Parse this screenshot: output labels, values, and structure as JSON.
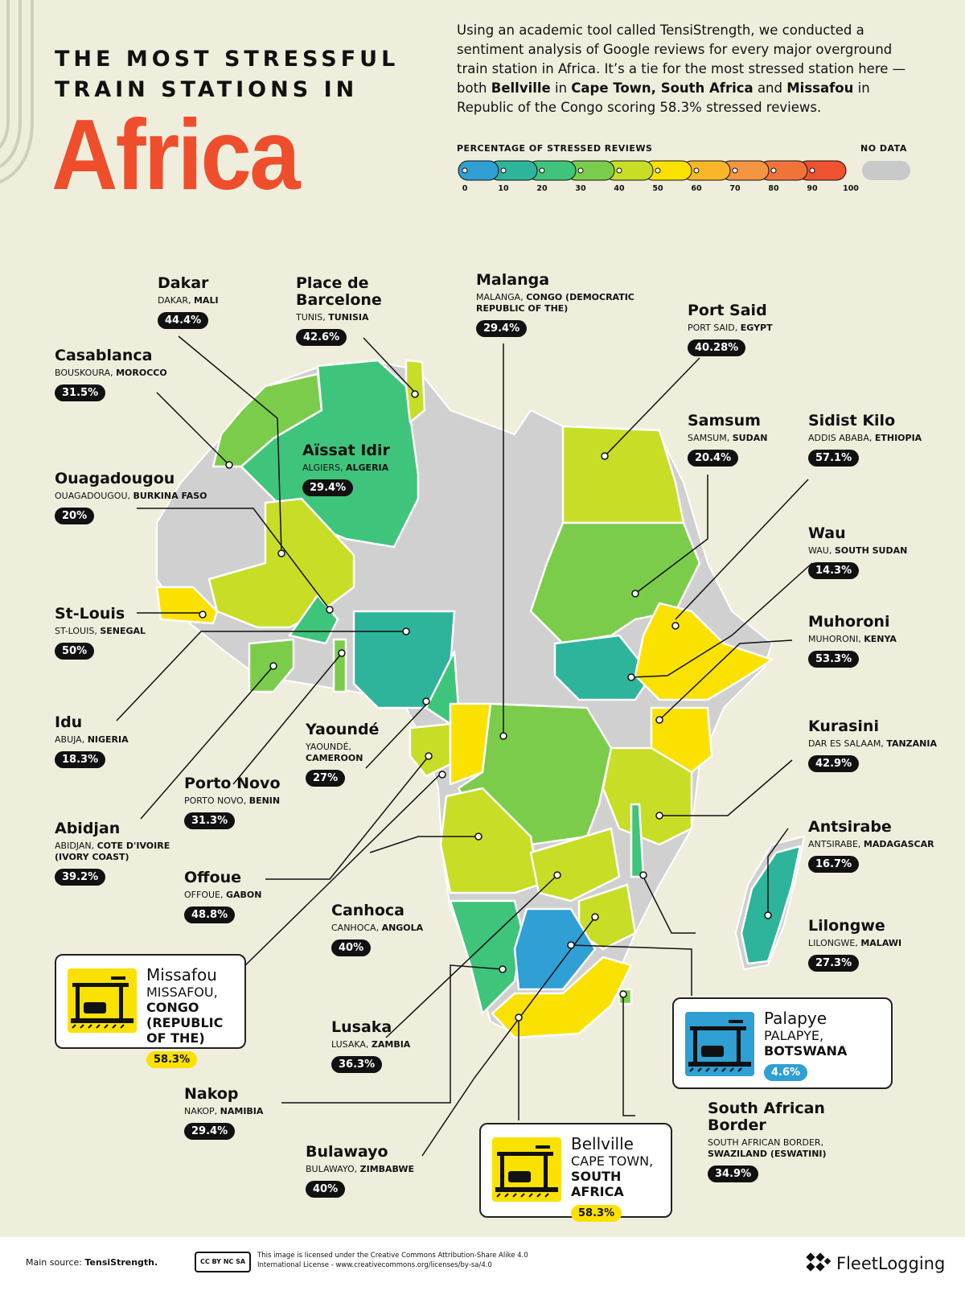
{
  "header": {
    "title_line1": "THE MOST STRESSFUL",
    "title_line2": "TRAIN STATIONS IN",
    "title_big": "Africa"
  },
  "intro": {
    "p1": "Using an academic tool called TensiStrength, we conducted a sentiment analysis of Google reviews for every major overground train station in Africa. It’s a tie for the most stressed station here — both ",
    "b1": "Bellville",
    "p2": " in ",
    "b2": "Cape Town, South Africa",
    "p3": " and ",
    "b3": "Missafou",
    "p4": " in Republic of the Congo scoring 58.3% stressed reviews."
  },
  "legend": {
    "title": "PERCENTAGE OF STRESSED REVIEWS",
    "nodata": "NO DATA",
    "nodata_color": "#c8c9c9",
    "ticks": [
      "0",
      "10",
      "20",
      "30",
      "40",
      "50",
      "60",
      "70",
      "80",
      "90",
      "100"
    ],
    "colors": [
      "#2f9fd4",
      "#2db49b",
      "#3fc47b",
      "#7ccc4c",
      "#c8dd26",
      "#fbe100",
      "#f8b628",
      "#f49542",
      "#f27339",
      "#ee5230"
    ]
  },
  "stations": [
    {
      "id": "dakar",
      "name": "Dakar",
      "city": "DAKAR, ",
      "country": "MALI",
      "value": "44.4%"
    },
    {
      "id": "barcelone",
      "name": "Place de Barcelone",
      "city": "TUNIS, ",
      "country": "TUNISIA",
      "value": "42.6%"
    },
    {
      "id": "malanga",
      "name": "Malanga",
      "city": "MALANGA, ",
      "country": "CONGO (DEMOCRATIC REPUBLIC OF THE)",
      "value": "29.4%"
    },
    {
      "id": "portsaid",
      "name": "Port Said",
      "city": "PORT SAID, ",
      "country": "EGYPT",
      "value": "40.28%"
    },
    {
      "id": "casablanca",
      "name": "Casablanca",
      "city": "BOUSKOURA, ",
      "country": "MOROCCO",
      "value": "31.5%"
    },
    {
      "id": "aissat",
      "name": "Aïssat Idir",
      "city": "ALGIERS, ",
      "country": "ALGERIA",
      "value": "29.4%"
    },
    {
      "id": "samsum",
      "name": "Samsum",
      "city": "SAMSUM, ",
      "country": "SUDAN",
      "value": "20.4%"
    },
    {
      "id": "sidist",
      "name": "Sidist Kilo",
      "city": "ADDIS ABABA, ",
      "country": "ETHIOPIA",
      "value": "57.1%"
    },
    {
      "id": "ouaga",
      "name": "Ouagadougou",
      "city": "OUAGADOUGOU, ",
      "country": "BURKINA FASO",
      "value": "20%"
    },
    {
      "id": "wau",
      "name": "Wau",
      "city": "WAU, ",
      "country": "SOUTH SUDAN",
      "value": "14.3%"
    },
    {
      "id": "stlouis",
      "name": "St-Louis",
      "city": "ST-LOUIS, ",
      "country": "SENEGAL",
      "value": "50%"
    },
    {
      "id": "muhoroni",
      "name": "Muhoroni",
      "city": "MUHORONI, ",
      "country": "KENYA",
      "value": "53.3%"
    },
    {
      "id": "idu",
      "name": "Idu",
      "city": "ABUJA, ",
      "country": "NIGERIA",
      "value": "18.3%"
    },
    {
      "id": "yaounde",
      "name": "Yaoundé",
      "city": "YAOUNDÉ, ",
      "country": "CAMEROON",
      "value": "27%"
    },
    {
      "id": "kurasini",
      "name": "Kurasini",
      "city": "DAR ES SALAAM, ",
      "country": "TANZANIA",
      "value": "42.9%"
    },
    {
      "id": "portonovo",
      "name": "Porto Novo",
      "city": "PORTO NOVO, ",
      "country": "BENIN",
      "value": "31.3%"
    },
    {
      "id": "abidjan",
      "name": "Abidjan",
      "city": "ABIDJAN, ",
      "country": "COTE D'IVOIRE (IVORY COAST)",
      "value": "39.2%"
    },
    {
      "id": "antsirabe",
      "name": "Antsirabe",
      "city": "ANTSIRABE, ",
      "country": "MADAGASCAR",
      "value": "16.7%"
    },
    {
      "id": "offoue",
      "name": "Offoue",
      "city": "OFFOUE, ",
      "country": "GABON",
      "value": "48.8%"
    },
    {
      "id": "canhoca",
      "name": "Canhoca",
      "city": "CANHOCA, ",
      "country": "ANGOLA",
      "value": "40%"
    },
    {
      "id": "lilongwe",
      "name": "Lilongwe",
      "city": "LILONGWE, ",
      "country": "MALAWI",
      "value": "27.3%"
    },
    {
      "id": "missafou",
      "name": "Missafou",
      "city": "MISSAFOU, ",
      "country": "CONGO (REPUBLIC OF THE)",
      "value": "58.3%"
    },
    {
      "id": "lusaka",
      "name": "Lusaka",
      "city": "LUSAKA, ",
      "country": "ZAMBIA",
      "value": "36.3%"
    },
    {
      "id": "palapye",
      "name": "Palapye",
      "city": "PALAPYE, ",
      "country": "BOTSWANA",
      "value": "4.6%"
    },
    {
      "id": "nakop",
      "name": "Nakop",
      "city": "NAKOP, ",
      "country": "NAMIBIA",
      "value": "29.4%"
    },
    {
      "id": "saborder",
      "name": "South African Border",
      "city": "SOUTH AFRICAN BORDER, ",
      "country": "SWAZILAND (ESWATINI)",
      "value": "34.9%"
    },
    {
      "id": "bulawayo",
      "name": "Bulawayo",
      "city": "BULAWAYO, ",
      "country": "ZIMBABWE",
      "value": "40%"
    },
    {
      "id": "bellville",
      "name": "Bellville",
      "city": "CAPE TOWN, ",
      "country": "SOUTH AFRICA",
      "value": "58.3%"
    }
  ],
  "footer": {
    "source_label": "Main source: ",
    "source_value": "TensiStrength.",
    "license": "This image is licensed under the Creative Commons Attribution-Share Alike 4.0 International License - www.creativecommons.org/licenses/by-sa/4.0",
    "cc_badge": "CC BY NC SA",
    "brand": "FleetLogging"
  }
}
